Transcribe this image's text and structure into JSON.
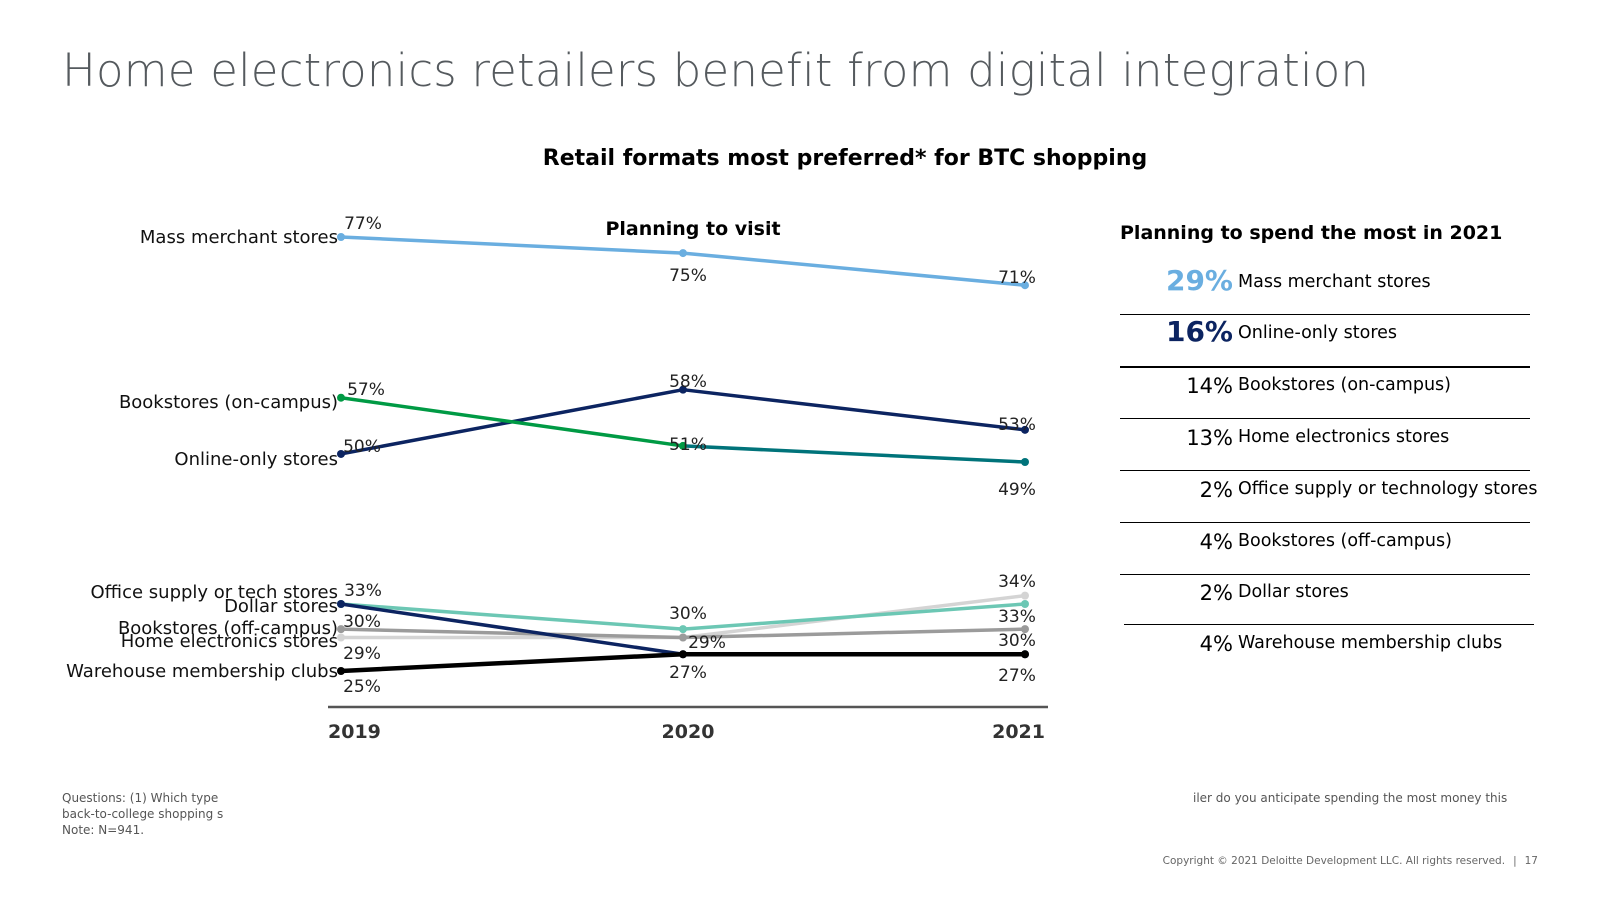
{
  "page": {
    "title": "Home electronics retailers benefit from digital integration"
  },
  "chart_title": "Retail formats most preferred* for BTC shopping",
  "chart_data": {
    "type": "line",
    "title": "Planning to visit",
    "categories": [
      "2019",
      "2020",
      "2021"
    ],
    "ylim": [
      20,
      80
    ],
    "series": [
      {
        "name": "Mass merchant stores",
        "values": [
          77,
          75,
          71
        ],
        "color": "#6aaee0",
        "labels": [
          "77%",
          "75%",
          "71%"
        ]
      },
      {
        "name": "Bookstores (on-campus)",
        "values": [
          57,
          51,
          49
        ],
        "color": "#009a44",
        "color2": "#00737a",
        "labels": [
          "57%",
          "51%",
          "49%"
        ]
      },
      {
        "name": "Online-only stores",
        "values": [
          50,
          58,
          53
        ],
        "color": "#0c2461",
        "labels": [
          "50%",
          "58%",
          "53%"
        ]
      },
      {
        "name": "Office supply or tech stores",
        "values": [
          33,
          30,
          33
        ],
        "color": "#6cc7b4",
        "labels": [
          "33%",
          "30%",
          "33%"
        ]
      },
      {
        "name": "Dollar stores",
        "values": [
          33,
          27,
          27
        ],
        "color": "#0c2461",
        "labels": [
          "",
          "",
          ""
        ]
      },
      {
        "name": "Bookstores (off-campus)",
        "values": [
          30,
          29,
          30
        ],
        "color": "#9b9b9b",
        "labels": [
          "30%",
          "29%",
          "30%"
        ]
      },
      {
        "name": "Home electronics stores",
        "values": [
          29,
          29,
          34
        ],
        "color": "#d4d4d4",
        "labels": [
          "29%",
          "",
          "34%"
        ]
      },
      {
        "name": "Warehouse membership clubs",
        "values": [
          25,
          27,
          27
        ],
        "color": "#000000",
        "labels": [
          "25%",
          "27%",
          "27%"
        ]
      }
    ]
  },
  "spend_panel": {
    "title": "Planning to spend the most in 2021",
    "rows": [
      {
        "pct": "29%",
        "label": "Mass merchant stores",
        "color": "#6aaee0"
      },
      {
        "pct": "16%",
        "label": "Online-only stores",
        "color": "#0c2461"
      },
      {
        "pct": "14%",
        "label": "Bookstores (on-campus)"
      },
      {
        "pct": "13%",
        "label": "Home electronics stores"
      },
      {
        "pct": "2%",
        "label": "Office supply or technology stores"
      },
      {
        "pct": "4%",
        "label": "Bookstores (off-campus)"
      },
      {
        "pct": "2%",
        "label": "Dollar stores"
      },
      {
        "pct": "4%",
        "label": "Warehouse membership clubs"
      }
    ]
  },
  "footnotes": {
    "left": [
      "Questions: (1) Which type",
      "back-to-college shopping s",
      "Note: N=941."
    ],
    "right": "iler do you anticipate spending the most money this"
  },
  "copyright": {
    "text": "Copyright © 2021 Deloitte Development LLC. All rights reserved.",
    "separator": "|",
    "page_number": "17"
  }
}
